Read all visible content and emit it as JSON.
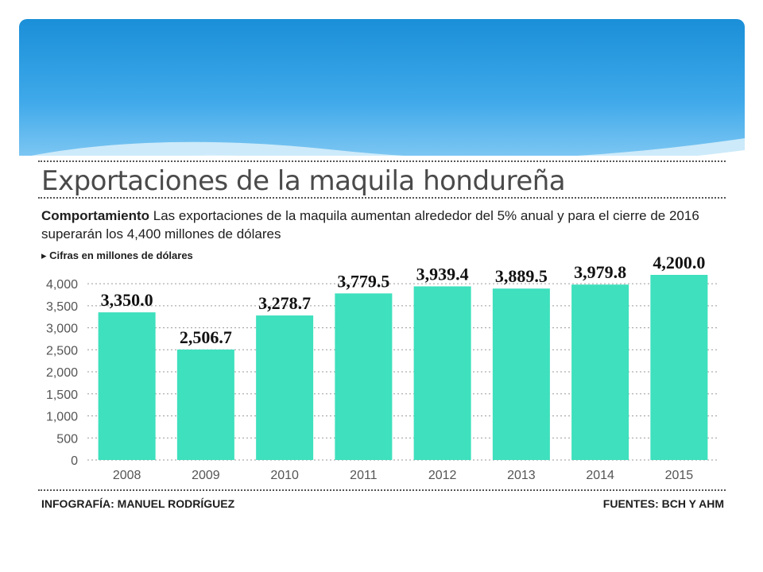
{
  "header": {
    "title": "Exportaciones de la maquila hondureña",
    "subtitle_bold": "Comportamiento",
    "subtitle_text": "Las exportaciones de la maquila aumentan alrededor del 5% anual y para el cierre de 2016 superarán los 4,400 millones de dólares",
    "units_note": "Cifras en millones de dólares"
  },
  "footer": {
    "credit": "INFOGRAFÍA: MANUEL RODRÍGUEZ",
    "sources": "FUENTES: BCH Y AHM"
  },
  "colors": {
    "bar": "#3ee0bd",
    "header_blue": "#1a8fd8"
  },
  "chart_data": {
    "type": "bar",
    "title": "Exportaciones de la maquila hondureña",
    "categories": [
      "2008",
      "2009",
      "2010",
      "2011",
      "2012",
      "2013",
      "2014",
      "2015"
    ],
    "values": [
      3350.0,
      2506.7,
      3278.7,
      3779.5,
      3939.4,
      3889.5,
      3979.8,
      4200.0
    ],
    "value_labels": [
      "3,350.0",
      "2,506.7",
      "3,278.7",
      "3,779.5",
      "3,939.4",
      "3,889.5",
      "3,979.8",
      "4,200.0"
    ],
    "yticks": [
      0,
      500,
      1000,
      1500,
      2000,
      2500,
      3000,
      3500,
      4000
    ],
    "ytick_labels": [
      "0",
      "500",
      "1,000",
      "1,500",
      "2,000",
      "2,500",
      "3,000",
      "3,500",
      "4,000"
    ],
    "ylim": [
      0,
      4200
    ],
    "grid": "horizontal dotted",
    "ylabel": "Cifras en millones de dólares",
    "xlabel": ""
  }
}
